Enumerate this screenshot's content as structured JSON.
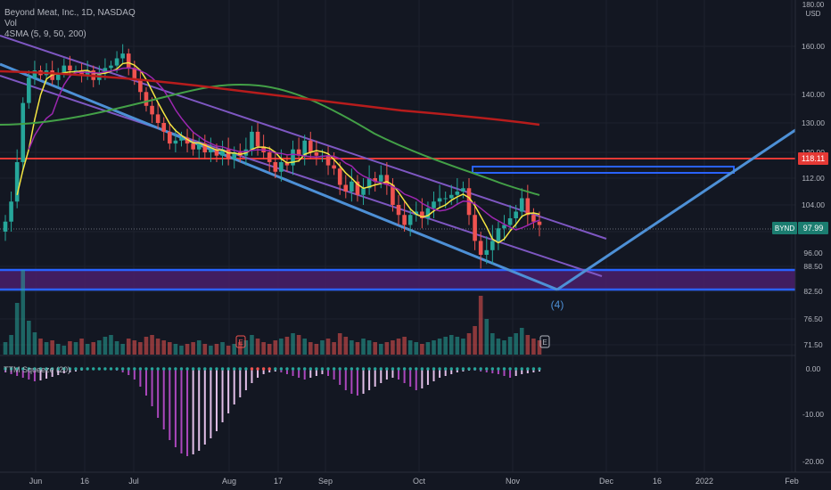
{
  "chart_data": {
    "type": "line",
    "title": "Beyond Meat, Inc., 1D, NASDAQ",
    "indicators": [
      "Vol",
      "4SMA (5, 9, 50, 200)"
    ],
    "lower_indicator": "TTM Squeeze (20)",
    "currency": "USD",
    "ticker": "BYND",
    "last_price": "97.99",
    "x_ticks": [
      "Jun",
      "16",
      "Jul",
      "Aug",
      "17",
      "Sep",
      "Oct",
      "Nov",
      "Dec",
      "16",
      "2022",
      "Feb"
    ],
    "y_ticks": [
      "160.00",
      "140.00",
      "130.00",
      "120.00",
      "112.00",
      "104.00",
      "96.00",
      "88.50",
      "82.50",
      "76.50",
      "71.50"
    ],
    "y_top_tick": "180.00",
    "sub_ticks": [
      "0.00",
      "-10.00",
      "-20.00"
    ],
    "price_lines": [
      {
        "label": "118.11",
        "color": "#e53935"
      },
      {
        "label": "97.99",
        "color": "#26a69a"
      }
    ],
    "wave_label": "(4)",
    "earnings_marker": "E",
    "close_series": [
      99,
      105,
      117,
      137,
      147,
      150,
      148,
      150,
      146,
      149,
      152,
      150,
      150,
      148,
      150,
      146,
      149,
      151,
      152,
      155,
      157,
      151,
      146,
      141,
      136,
      133,
      130,
      127,
      123,
      124,
      125,
      123,
      121,
      123,
      120,
      121,
      119,
      121,
      118,
      120,
      119,
      121,
      127,
      122,
      120,
      117,
      114,
      117,
      116,
      121,
      119,
      124,
      120,
      119,
      119,
      116,
      115,
      110,
      108,
      111,
      107,
      109,
      112,
      111,
      113,
      110,
      104,
      101,
      98,
      101,
      102,
      100,
      103,
      105,
      106,
      106,
      107,
      108,
      109,
      101,
      94,
      91,
      92,
      94,
      97,
      98,
      100,
      102,
      106,
      101,
      99,
      97.99
    ],
    "colors": {
      "up": "#26a69a",
      "down": "#ef5350",
      "sma5": "#f5e642",
      "sma9": "#9c27b0",
      "sma50": "#43a047",
      "sma200": "#b71c1c",
      "channel": "#7e57c2",
      "trend": "#4d90d6",
      "support": "#2962ff",
      "resistance": "#e53935"
    }
  }
}
